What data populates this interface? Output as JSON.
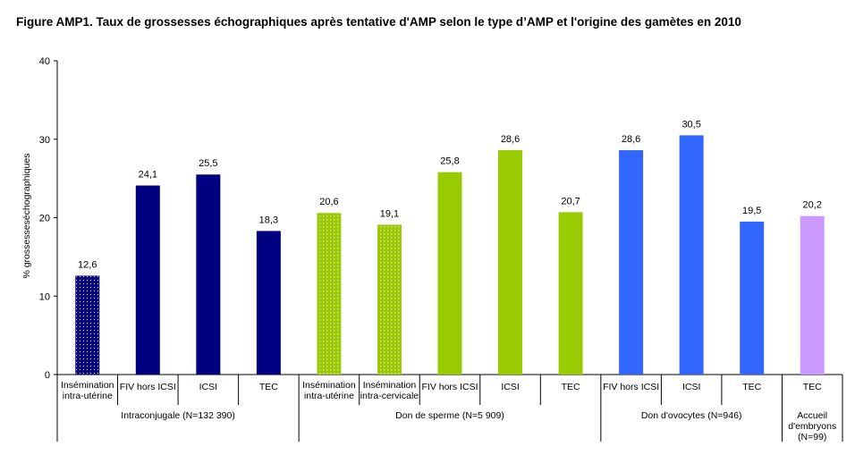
{
  "title": "Figure AMP1. Taux de grossesses échographiques après tentative d'AMP selon le type d’AMP et l'origine des gamètes en 2010",
  "chart_data": {
    "type": "bar",
    "ylabel": "% grossesseséchographiques",
    "ylim": [
      0,
      40
    ],
    "yticks": [
      0,
      10,
      20,
      30,
      40
    ],
    "grid": false,
    "bars": [
      {
        "label": [
          "Insémination",
          "intra-utérine"
        ],
        "value": 12.6,
        "value_label": "12,6",
        "color": "#000080",
        "pattern": "dots"
      },
      {
        "label": [
          "FIV hors ICSI"
        ],
        "value": 24.1,
        "value_label": "24,1",
        "color": "#000080",
        "pattern": "solid"
      },
      {
        "label": [
          "ICSI"
        ],
        "value": 25.5,
        "value_label": "25,5",
        "color": "#000080",
        "pattern": "solid"
      },
      {
        "label": [
          "TEC"
        ],
        "value": 18.3,
        "value_label": "18,3",
        "color": "#000080",
        "pattern": "solid"
      },
      {
        "label": [
          "Insémination",
          "intra-utérine"
        ],
        "value": 20.6,
        "value_label": "20,6",
        "color": "#99CC00",
        "pattern": "dots"
      },
      {
        "label": [
          "Insémination",
          "intra-cervicale"
        ],
        "value": 19.1,
        "value_label": "19,1",
        "color": "#99CC00",
        "pattern": "dots"
      },
      {
        "label": [
          "FIV hors ICSI"
        ],
        "value": 25.8,
        "value_label": "25,8",
        "color": "#99CC00",
        "pattern": "solid"
      },
      {
        "label": [
          "ICSI"
        ],
        "value": 28.6,
        "value_label": "28,6",
        "color": "#99CC00",
        "pattern": "solid"
      },
      {
        "label": [
          "TEC"
        ],
        "value": 20.7,
        "value_label": "20,7",
        "color": "#99CC00",
        "pattern": "solid"
      },
      {
        "label": [
          "FIV hors ICSI"
        ],
        "value": 28.6,
        "value_label": "28,6",
        "color": "#3366FF",
        "pattern": "solid"
      },
      {
        "label": [
          "ICSI"
        ],
        "value": 30.5,
        "value_label": "30,5",
        "color": "#3366FF",
        "pattern": "solid"
      },
      {
        "label": [
          "TEC"
        ],
        "value": 19.5,
        "value_label": "19,5",
        "color": "#3366FF",
        "pattern": "solid"
      },
      {
        "label": [
          "TEC"
        ],
        "value": 20.2,
        "value_label": "20,2",
        "color": "#CC99FF",
        "pattern": "solid"
      }
    ],
    "groups": [
      {
        "label": [
          "Intraconjugale (N=132 390)"
        ],
        "start": 0,
        "count": 4
      },
      {
        "label": [
          "Don de sperme (N=5 909)"
        ],
        "start": 4,
        "count": 5
      },
      {
        "label": [
          "Don d'ovocytes (N=946)"
        ],
        "start": 9,
        "count": 3
      },
      {
        "label": [
          "Accueil",
          "d'embryons",
          "(N=99)"
        ],
        "start": 12,
        "count": 1
      }
    ]
  }
}
